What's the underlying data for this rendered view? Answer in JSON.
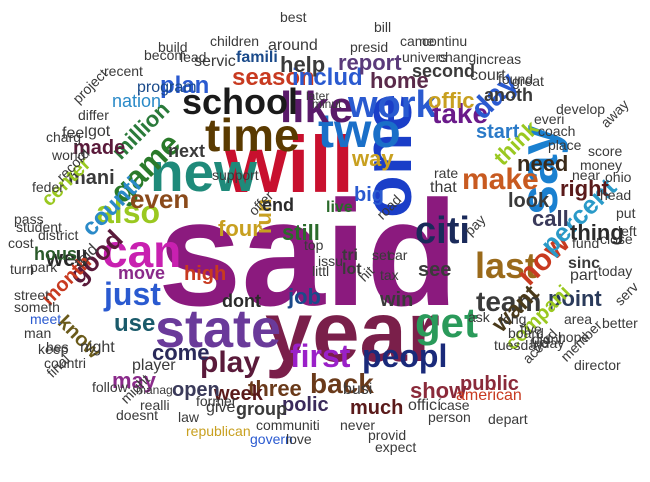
{
  "words": [
    {
      "t": "said",
      "c": "#8b1a7e",
      "w": "bold"
    },
    {
      "t": "will",
      "c": "#c8102e",
      "w": "bold"
    },
    {
      "t": "year",
      "c": "#7a1f4a",
      "w": "bold"
    },
    {
      "t": "one",
      "c": "#1a3ec8",
      "w": "bold"
    },
    {
      "t": "new",
      "c": "#1f8a7a",
      "w": "bold"
    },
    {
      "t": "time",
      "c": "#5a3a00",
      "w": "bold"
    },
    {
      "t": "two",
      "c": "#1a6fc8",
      "w": "bold"
    },
    {
      "t": "state",
      "c": "#6a3a9a",
      "w": "bold"
    },
    {
      "t": "like",
      "c": "#5a1a6a",
      "w": "bold"
    },
    {
      "t": "work",
      "c": "#2a5ad0",
      "w": "bold"
    },
    {
      "t": "school",
      "c": "#1a1a1a",
      "w": "bold"
    },
    {
      "t": "can",
      "c": "#c820b0",
      "w": "bold"
    },
    {
      "t": "also",
      "c": "#9ac820",
      "w": "bold"
    },
    {
      "t": "game",
      "c": "#2a7a2a",
      "w": "bold"
    },
    {
      "t": "say",
      "c": "#1a80d0",
      "w": "bold"
    },
    {
      "t": "make",
      "c": "#c85a20",
      "w": "bold"
    },
    {
      "t": "citi",
      "c": "#1a2a5a",
      "w": "bold"
    },
    {
      "t": "get",
      "c": "#2a9a5a",
      "w": "bold"
    },
    {
      "t": "first",
      "c": "#9a20c8",
      "w": "bold"
    },
    {
      "t": "peopl",
      "c": "#1a2a7a",
      "w": "bold"
    },
    {
      "t": "last",
      "c": "#9a6a1a",
      "w": "bold"
    },
    {
      "t": "play",
      "c": "#5a1a3a",
      "w": "bold"
    },
    {
      "t": "just",
      "c": "#2a5ad0",
      "w": "bold"
    },
    {
      "t": "now",
      "c": "#c83a20",
      "w": "bold"
    },
    {
      "t": "percent",
      "c": "#2a9ac8",
      "w": "bold"
    },
    {
      "t": "back",
      "c": "#6a3a1a",
      "w": "bold"
    },
    {
      "t": "take",
      "c": "#6a1a8a",
      "w": "bold"
    },
    {
      "t": "day",
      "c": "#2a5ad0",
      "w": "bold"
    },
    {
      "t": "season",
      "c": "#c83a20",
      "w": "bold"
    },
    {
      "t": "includ",
      "c": "#2a5ad0",
      "w": "bold"
    },
    {
      "t": "home",
      "c": "#5a2a4a",
      "w": "bold"
    },
    {
      "t": "million",
      "c": "#2a7a3a",
      "w": "bold"
    },
    {
      "t": "even",
      "c": "#8a4a1a",
      "w": "bold"
    },
    {
      "t": "counti",
      "c": "#2a8ac8",
      "w": "bold"
    },
    {
      "t": "use",
      "c": "#1a5a6a",
      "w": "bold"
    },
    {
      "t": "come",
      "c": "#2a2a5a",
      "w": "bold"
    },
    {
      "t": "three",
      "c": "#6a3a1a",
      "w": "bold"
    },
    {
      "t": "week",
      "c": "#5a1a1a",
      "w": "bold"
    },
    {
      "t": "team",
      "c": "#3a3a3a",
      "w": "bold"
    },
    {
      "t": "want",
      "c": "#4a3a1a",
      "w": "bold"
    },
    {
      "t": "show",
      "c": "#8a2a3a",
      "w": "bold"
    },
    {
      "t": "call",
      "c": "#3a3a5a",
      "w": "bold"
    },
    {
      "t": "need",
      "c": "#3a2a1a",
      "w": "bold"
    },
    {
      "t": "start",
      "c": "#2a7ac8",
      "w": "bold"
    },
    {
      "t": "offic",
      "c": "#c8a020",
      "w": "bold"
    },
    {
      "t": "good",
      "c": "#5a1a3a",
      "w": "bold"
    },
    {
      "t": "well",
      "c": "#2a2a2a",
      "w": "bold"
    },
    {
      "t": "hous",
      "c": "#2a5a2a",
      "w": "bold"
    },
    {
      "t": "run",
      "c": "#c8a020",
      "w": "bold"
    },
    {
      "t": "still",
      "c": "#2a6a2a",
      "w": "bold"
    },
    {
      "t": "four",
      "c": "#c8a020",
      "w": "bold"
    },
    {
      "t": "plan",
      "c": "#2a5ad0",
      "w": "bold"
    },
    {
      "t": "help",
      "c": "#3a3a3a",
      "w": "bold"
    },
    {
      "t": "report",
      "c": "#5a3a7a",
      "w": "bold"
    },
    {
      "t": "way",
      "c": "#c8a020",
      "w": "bold"
    },
    {
      "t": "made",
      "c": "#5a1a3a",
      "w": "bold"
    },
    {
      "t": "mani",
      "c": "#3a3a3a",
      "w": "bold"
    },
    {
      "t": "month",
      "c": "#c83a20",
      "w": "bold"
    },
    {
      "t": "know",
      "c": "#6a5a1a",
      "w": "bold"
    },
    {
      "t": "point",
      "c": "#2a3a5a",
      "w": "bold"
    },
    {
      "t": "thing",
      "c": "#2a2a2a",
      "w": "bold"
    },
    {
      "t": "look",
      "c": "#3a3a3a",
      "w": "bold"
    },
    {
      "t": "right",
      "c": "#5a1a1a",
      "w": "bold"
    },
    {
      "t": "think",
      "c": "#9ac820",
      "w": "bold"
    },
    {
      "t": "may",
      "c": "#8a2a8a",
      "w": "bold"
    },
    {
      "t": "polic",
      "c": "#3a2a5a",
      "w": "bold"
    },
    {
      "t": "much",
      "c": "#5a1a1a",
      "w": "bold"
    },
    {
      "t": "public",
      "c": "#8a2a3a",
      "w": "bold"
    },
    {
      "t": "compani",
      "c": "#9ac820",
      "w": "bold"
    },
    {
      "t": "open",
      "c": "#3a3a5a",
      "w": "bold"
    },
    {
      "t": "job",
      "c": "#1a4a8a",
      "w": "bold"
    },
    {
      "t": "see",
      "c": "#3a3a3a",
      "w": "bold"
    },
    {
      "t": "high",
      "c": "#c83a20",
      "w": "bold"
    },
    {
      "t": "move",
      "c": "#8a2a8a",
      "w": "bold"
    },
    {
      "t": "dont",
      "c": "#2a2a2a",
      "w": "bold"
    },
    {
      "t": "end",
      "c": "#2a2a2a",
      "w": "bold"
    },
    {
      "t": "next",
      "c": "#3a3a3a",
      "w": "bold"
    },
    {
      "t": "center",
      "c": "#9ac820",
      "w": "bold"
    },
    {
      "t": "group",
      "c": "#3a3a3a",
      "w": "bold"
    },
    {
      "t": "win",
      "c": "#3a3a3a",
      "w": "bold"
    },
    {
      "t": "lot",
      "c": "#3a3a3a",
      "w": "bold"
    },
    {
      "t": "tri",
      "c": "#3a3a3a",
      "w": "bold"
    },
    {
      "t": "live",
      "c": "#2a6a2a",
      "w": "bold"
    },
    {
      "t": "big",
      "c": "#2a5ad0",
      "w": "bold"
    },
    {
      "t": "that",
      "c": "#3a3a3a",
      "w": "normal"
    },
    {
      "t": "sinc",
      "c": "#3a3a3a",
      "w": "bold"
    },
    {
      "t": "part",
      "c": "#3a3a3a",
      "w": "normal"
    },
    {
      "t": "second",
      "c": "#3a3a3a",
      "w": "bold"
    },
    {
      "t": "anoth",
      "c": "#3a3a3a",
      "w": "bold"
    },
    {
      "t": "court",
      "c": "#3a3a3a",
      "w": "normal"
    },
    {
      "t": "american",
      "c": "#c83a20",
      "w": "normal"
    },
    {
      "t": "officí",
      "c": "#3a3a3a",
      "w": "normal"
    },
    {
      "t": "busi",
      "c": "#3a3a3a",
      "w": "normal"
    },
    {
      "t": "give",
      "c": "#3a3a3a",
      "w": "normal"
    },
    {
      "t": "player",
      "c": "#3a3a3a",
      "w": "normal"
    },
    {
      "t": "night",
      "c": "#3a3a3a",
      "w": "normal"
    },
    {
      "t": "told",
      "c": "#3a3a3a",
      "w": "normal"
    },
    {
      "t": "famili",
      "c": "#1a4a8a",
      "w": "bold"
    },
    {
      "t": "around",
      "c": "#3a3a3a",
      "w": "normal"
    },
    {
      "t": "servic",
      "c": "#3a3a3a",
      "w": "normal"
    },
    {
      "t": "nation",
      "c": "#2a8ac8",
      "w": "normal"
    },
    {
      "t": "program",
      "c": "#1a4a8a",
      "w": "normal"
    },
    {
      "t": "got",
      "c": "#3a3a3a",
      "w": "normal"
    },
    {
      "t": "feel",
      "c": "#3a3a3a",
      "w": "normal"
    },
    {
      "t": "district",
      "c": "#3a3a3a",
      "w": "normal"
    },
    {
      "t": "park",
      "c": "#3a3a3a",
      "w": "normal"
    },
    {
      "t": "street",
      "c": "#3a3a3a",
      "w": "normal"
    },
    {
      "t": "meet",
      "c": "#2a5ad0",
      "w": "normal"
    },
    {
      "t": "man",
      "c": "#3a3a3a",
      "w": "normal"
    },
    {
      "t": "keep",
      "c": "#3a3a3a",
      "w": "normal"
    },
    {
      "t": "countri",
      "c": "#3a3a3a",
      "w": "normal"
    },
    {
      "t": "follow",
      "c": "#3a3a3a",
      "w": "normal"
    },
    {
      "t": "might",
      "c": "#3a3a3a",
      "w": "normal"
    },
    {
      "t": "doesnt",
      "c": "#3a3a3a",
      "w": "normal"
    },
    {
      "t": "law",
      "c": "#3a3a3a",
      "w": "normal"
    },
    {
      "t": "republican",
      "c": "#c8a020",
      "w": "normal"
    },
    {
      "t": "communiti",
      "c": "#3a3a3a",
      "w": "normal"
    },
    {
      "t": "govern",
      "c": "#2a5ad0",
      "w": "normal"
    },
    {
      "t": "love",
      "c": "#3a3a3a",
      "w": "normal"
    },
    {
      "t": "never",
      "c": "#3a3a3a",
      "w": "normal"
    },
    {
      "t": "provid",
      "c": "#3a3a3a",
      "w": "normal"
    },
    {
      "t": "expect",
      "c": "#3a3a3a",
      "w": "normal"
    },
    {
      "t": "person",
      "c": "#3a3a3a",
      "w": "normal"
    },
    {
      "t": "case",
      "c": "#3a3a3a",
      "w": "normal"
    },
    {
      "t": "director",
      "c": "#3a3a3a",
      "w": "normal"
    },
    {
      "t": "hope",
      "c": "#3a3a3a",
      "w": "normal"
    },
    {
      "t": "area",
      "c": "#3a3a3a",
      "w": "normal"
    },
    {
      "t": "better",
      "c": "#3a3a3a",
      "w": "normal"
    },
    {
      "t": "didnt",
      "c": "#3a3a3a",
      "w": "normal"
    },
    {
      "t": "five",
      "c": "#3a3a3a",
      "w": "normal"
    },
    {
      "t": "long",
      "c": "#3a3a3a",
      "w": "normal"
    },
    {
      "t": "ask",
      "c": "#3a3a3a",
      "w": "normal"
    },
    {
      "t": "board",
      "c": "#3a3a3a",
      "w": "normal"
    },
    {
      "t": "head",
      "c": "#3a3a3a",
      "w": "normal"
    },
    {
      "t": "ohio",
      "c": "#3a3a3a",
      "w": "normal"
    },
    {
      "t": "near",
      "c": "#3a3a3a",
      "w": "normal"
    },
    {
      "t": "money",
      "c": "#3a3a3a",
      "w": "normal"
    },
    {
      "t": "score",
      "c": "#3a3a3a",
      "w": "normal"
    },
    {
      "t": "everi",
      "c": "#3a3a3a",
      "w": "normal"
    },
    {
      "t": "place",
      "c": "#3a3a3a",
      "w": "normal"
    },
    {
      "t": "coach",
      "c": "#3a3a3a",
      "w": "normal"
    },
    {
      "t": "later",
      "c": "#3a3a3a",
      "w": "normal"
    },
    {
      "t": "minut",
      "c": "#3a3a3a",
      "w": "normal"
    },
    {
      "t": "children",
      "c": "#3a3a3a",
      "w": "normal"
    },
    {
      "t": "best",
      "c": "#3a3a3a",
      "w": "normal"
    },
    {
      "t": "came",
      "c": "#3a3a3a",
      "w": "normal"
    },
    {
      "t": "continu",
      "c": "#3a3a3a",
      "w": "normal"
    },
    {
      "t": "chang",
      "c": "#3a3a3a",
      "w": "normal"
    },
    {
      "t": "increas",
      "c": "#3a3a3a",
      "w": "normal"
    },
    {
      "t": "univers",
      "c": "#3a3a3a",
      "w": "normal"
    },
    {
      "t": "great",
      "c": "#3a3a3a",
      "w": "normal"
    },
    {
      "t": "found",
      "c": "#3a3a3a",
      "w": "normal"
    },
    {
      "t": "develop",
      "c": "#3a3a3a",
      "w": "normal"
    },
    {
      "t": "away",
      "c": "#3a3a3a",
      "w": "normal"
    },
    {
      "t": "presid",
      "c": "#3a3a3a",
      "w": "normal"
    },
    {
      "t": "build",
      "c": "#3a3a3a",
      "w": "normal"
    },
    {
      "t": "becom",
      "c": "#3a3a3a",
      "w": "normal"
    },
    {
      "t": "lead",
      "c": "#3a3a3a",
      "w": "normal"
    },
    {
      "t": "recent",
      "c": "#3a3a3a",
      "w": "normal"
    },
    {
      "t": "project",
      "c": "#3a3a3a",
      "w": "normal"
    },
    {
      "t": "differ",
      "c": "#3a3a3a",
      "w": "normal"
    },
    {
      "t": "world",
      "c": "#3a3a3a",
      "w": "normal"
    },
    {
      "t": "charg",
      "c": "#3a3a3a",
      "w": "normal"
    },
    {
      "t": "record",
      "c": "#3a3a3a",
      "w": "normal"
    },
    {
      "t": "feder",
      "c": "#3a3a3a",
      "w": "normal"
    },
    {
      "t": "pass",
      "c": "#3a3a3a",
      "w": "normal"
    },
    {
      "t": "student",
      "c": "#3a3a3a",
      "w": "normal"
    },
    {
      "t": "cost",
      "c": "#3a3a3a",
      "w": "normal"
    },
    {
      "t": "turn",
      "c": "#3a3a3a",
      "w": "normal"
    },
    {
      "t": "someth",
      "c": "#3a3a3a",
      "w": "normal"
    },
    {
      "t": "final",
      "c": "#3a3a3a",
      "w": "normal"
    },
    {
      "t": "hes",
      "c": "#3a3a3a",
      "w": "normal"
    },
    {
      "t": "realli",
      "c": "#3a3a3a",
      "w": "normal"
    },
    {
      "t": "former",
      "c": "#3a3a3a",
      "w": "normal"
    },
    {
      "t": "support",
      "c": "#3a3a3a",
      "w": "normal"
    },
    {
      "t": "offer",
      "c": "#3a3a3a",
      "w": "normal"
    },
    {
      "t": "top",
      "c": "#3a3a3a",
      "w": "normal"
    },
    {
      "t": "issu",
      "c": "#3a3a3a",
      "w": "normal"
    },
    {
      "t": "littl",
      "c": "#3a3a3a",
      "w": "normal"
    },
    {
      "t": "hit",
      "c": "#3a3a3a",
      "w": "normal"
    },
    {
      "t": "road",
      "c": "#3a3a3a",
      "w": "normal"
    },
    {
      "t": "set",
      "c": "#3a3a3a",
      "w": "normal"
    },
    {
      "t": "tax",
      "c": "#3a3a3a",
      "w": "normal"
    },
    {
      "t": "car",
      "c": "#3a3a3a",
      "w": "normal"
    },
    {
      "t": "pay",
      "c": "#3a3a3a",
      "w": "normal"
    },
    {
      "t": "fund",
      "c": "#3a3a3a",
      "w": "normal"
    },
    {
      "t": "rate",
      "c": "#3a3a3a",
      "w": "normal"
    },
    {
      "t": "put",
      "c": "#3a3a3a",
      "w": "normal"
    },
    {
      "t": "left",
      "c": "#3a3a3a",
      "w": "normal"
    },
    {
      "t": "close",
      "c": "#3a3a3a",
      "w": "normal"
    },
    {
      "t": "today",
      "c": "#3a3a3a",
      "w": "normal"
    },
    {
      "t": "serv",
      "c": "#3a3a3a",
      "w": "normal"
    },
    {
      "t": "friday",
      "c": "#3a3a3a",
      "w": "normal"
    },
    {
      "t": "member",
      "c": "#3a3a3a",
      "w": "normal"
    },
    {
      "t": "accord",
      "c": "#3a3a3a",
      "w": "normal"
    },
    {
      "t": "depart",
      "c": "#3a3a3a",
      "w": "normal"
    },
    {
      "t": "tuesday",
      "c": "#3a3a3a",
      "w": "normal"
    },
    {
      "t": "bill",
      "c": "#3a3a3a",
      "w": "normal"
    },
    {
      "t": "manag",
      "c": "#3a3a3a",
      "w": "normal"
    }
  ]
}
